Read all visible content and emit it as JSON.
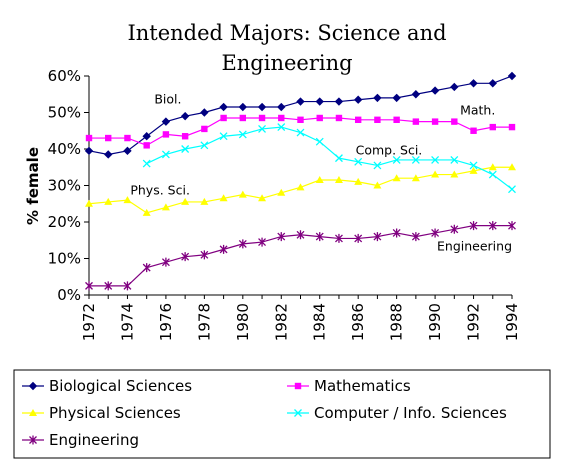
{
  "chart_data": {
    "type": "line",
    "title_lines": [
      "Intended Majors: Science and",
      "Engineering"
    ],
    "ylabel": "% female",
    "xlabel": "",
    "xlim": [
      1972,
      1994
    ],
    "ylim": [
      0,
      60
    ],
    "yticks": [
      "0%",
      "10%",
      "20%",
      "30%",
      "40%",
      "50%",
      "60%"
    ],
    "xticks": [
      "1972",
      "1974",
      "1976",
      "1978",
      "1980",
      "1982",
      "1984",
      "1986",
      "1988",
      "1990",
      "1992",
      "1994"
    ],
    "grid": false,
    "legend_position": "bottom",
    "series": [
      {
        "name": "Biological Sciences",
        "annotation": "Biol.",
        "color": "#000080",
        "marker": "diamond",
        "x": [
          1972,
          1973,
          1974,
          1975,
          1976,
          1977,
          1978,
          1979,
          1980,
          1981,
          1982,
          1983,
          1984,
          1985,
          1986,
          1987,
          1988,
          1989,
          1990,
          1991,
          1992,
          1993,
          1994
        ],
        "values": [
          39.5,
          38.5,
          39.5,
          43.5,
          47.5,
          49,
          50,
          51.5,
          51.5,
          51.5,
          51.5,
          53,
          53,
          53,
          53.5,
          54,
          54,
          55,
          56,
          57,
          58,
          58,
          60
        ]
      },
      {
        "name": "Mathematics",
        "annotation": "Math.",
        "color": "#ff00ff",
        "marker": "square",
        "x": [
          1972,
          1973,
          1974,
          1975,
          1976,
          1977,
          1978,
          1979,
          1980,
          1981,
          1982,
          1983,
          1984,
          1985,
          1986,
          1987,
          1988,
          1989,
          1990,
          1991,
          1992,
          1993,
          1994
        ],
        "values": [
          43,
          43,
          43,
          41,
          44,
          43.5,
          45.5,
          48.5,
          48.5,
          48.5,
          48.5,
          48,
          48.5,
          48.5,
          48,
          48,
          48,
          47.5,
          47.5,
          47.5,
          45,
          46,
          46
        ]
      },
      {
        "name": "Physical Sciences",
        "annotation": "Phys. Sci.",
        "color": "#ffff00",
        "marker": "triangle",
        "x": [
          1972,
          1973,
          1974,
          1975,
          1976,
          1977,
          1978,
          1979,
          1980,
          1981,
          1982,
          1983,
          1984,
          1985,
          1986,
          1987,
          1988,
          1989,
          1990,
          1991,
          1992,
          1993,
          1994
        ],
        "values": [
          25,
          25.5,
          26,
          22.5,
          24,
          25.5,
          25.5,
          26.5,
          27.5,
          26.5,
          28,
          29.5,
          31.5,
          31.5,
          31,
          30,
          32,
          32,
          33,
          33,
          34,
          35,
          35
        ]
      },
      {
        "name": "Computer / Info. Sciences",
        "annotation": "Comp. Sci.",
        "color": "#00ffff",
        "marker": "x",
        "x": [
          1975,
          1976,
          1977,
          1978,
          1979,
          1980,
          1981,
          1982,
          1983,
          1984,
          1985,
          1986,
          1987,
          1988,
          1989,
          1990,
          1991,
          1992,
          1993,
          1994
        ],
        "values": [
          36,
          38.5,
          40,
          41,
          43.5,
          44,
          45.5,
          46,
          44.5,
          42,
          37.5,
          36.5,
          35.5,
          37,
          37,
          37,
          37,
          35.5,
          33,
          29
        ]
      },
      {
        "name": "Engineering",
        "annotation": "Engineering",
        "color": "#800080",
        "marker": "star",
        "x": [
          1972,
          1973,
          1974,
          1975,
          1976,
          1977,
          1978,
          1979,
          1980,
          1981,
          1982,
          1983,
          1984,
          1985,
          1986,
          1987,
          1988,
          1989,
          1990,
          1991,
          1992,
          1993,
          1994
        ],
        "values": [
          2.5,
          2.5,
          2.5,
          7.5,
          9,
          10.5,
          11,
          12.5,
          14,
          14.5,
          16,
          16.5,
          16,
          15.5,
          15.5,
          16,
          17,
          16,
          17,
          18,
          19,
          19,
          19
        ]
      }
    ]
  }
}
